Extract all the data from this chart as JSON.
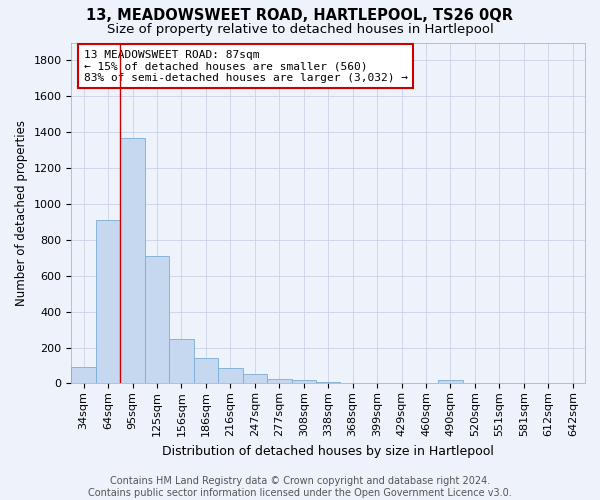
{
  "title": "13, MEADOWSWEET ROAD, HARTLEPOOL, TS26 0QR",
  "subtitle": "Size of property relative to detached houses in Hartlepool",
  "xlabel": "Distribution of detached houses by size in Hartlepool",
  "ylabel": "Number of detached properties",
  "categories": [
    "34sqm",
    "64sqm",
    "95sqm",
    "125sqm",
    "156sqm",
    "186sqm",
    "216sqm",
    "247sqm",
    "277sqm",
    "308sqm",
    "338sqm",
    "368sqm",
    "399sqm",
    "429sqm",
    "460sqm",
    "490sqm",
    "520sqm",
    "551sqm",
    "581sqm",
    "612sqm",
    "642sqm"
  ],
  "values": [
    90,
    910,
    1370,
    710,
    250,
    140,
    85,
    55,
    25,
    20,
    10,
    5,
    5,
    0,
    0,
    20,
    0,
    0,
    0,
    0,
    0
  ],
  "bar_color": "#c5d8f0",
  "bar_edge_color": "#7aadd4",
  "grid_color": "#c8d4e8",
  "background_color": "#eef2fa",
  "vline_x_index": 2,
  "vline_color": "#cc0000",
  "annotation_text": "13 MEADOWSWEET ROAD: 87sqm\n← 15% of detached houses are smaller (560)\n83% of semi-detached houses are larger (3,032) →",
  "annotation_box_color": "#ffffff",
  "annotation_box_edge_color": "#cc0000",
  "ylim": [
    0,
    1900
  ],
  "yticks": [
    0,
    200,
    400,
    600,
    800,
    1000,
    1200,
    1400,
    1600,
    1800
  ],
  "footer_text": "Contains HM Land Registry data © Crown copyright and database right 2024.\nContains public sector information licensed under the Open Government Licence v3.0.",
  "title_fontsize": 10.5,
  "subtitle_fontsize": 9.5,
  "xlabel_fontsize": 9,
  "ylabel_fontsize": 8.5,
  "tick_fontsize": 8,
  "annotation_fontsize": 8,
  "footer_fontsize": 7
}
